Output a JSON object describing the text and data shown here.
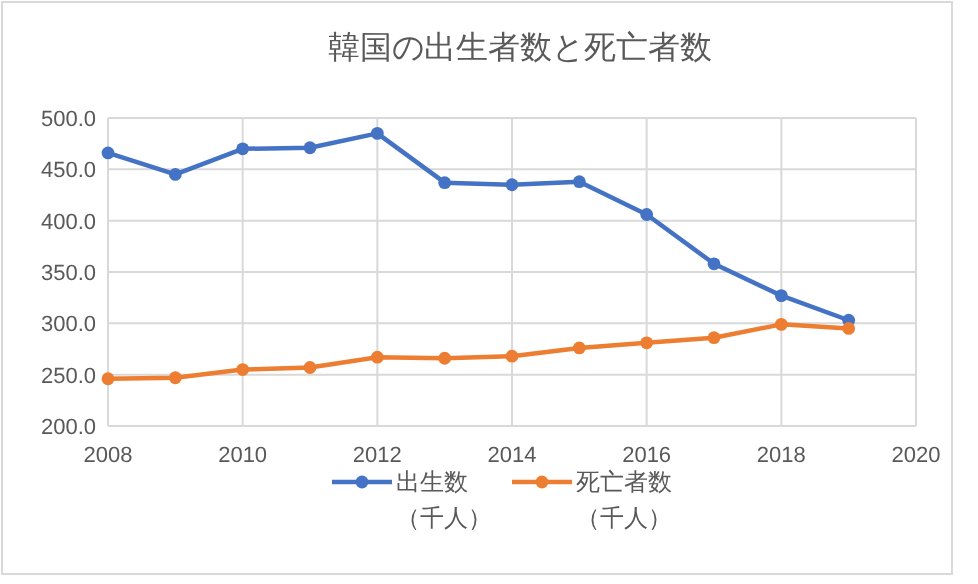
{
  "chart_data": {
    "type": "line",
    "title": "韓国の出生者数と死亡者数",
    "x": [
      2008,
      2009,
      2010,
      2011,
      2012,
      2013,
      2014,
      2015,
      2016,
      2017,
      2018,
      2019
    ],
    "series": [
      {
        "name": "出生数（千人）",
        "color": "#4472c4",
        "values": [
          466,
          445,
          470,
          471,
          485,
          437,
          435,
          438,
          406,
          358,
          327,
          303
        ]
      },
      {
        "name": "死亡者数（千人）",
        "color": "#ed7d31",
        "values": [
          246,
          247,
          255,
          257,
          267,
          266,
          268,
          276,
          281,
          286,
          299,
          295
        ]
      }
    ],
    "xlim": [
      2008,
      2020
    ],
    "xticks": [
      2008,
      2010,
      2012,
      2014,
      2016,
      2018,
      2020
    ],
    "ylim": [
      200,
      500
    ],
    "yticks": [
      {
        "value": 200,
        "label": "200.0"
      },
      {
        "value": 250,
        "label": "250.0"
      },
      {
        "value": 300,
        "label": "300.0"
      },
      {
        "value": 350,
        "label": "350.0"
      },
      {
        "value": 400,
        "label": "400.0"
      },
      {
        "value": 450,
        "label": "450.0"
      },
      {
        "value": 500,
        "label": "500.0"
      }
    ],
    "grid": true,
    "legend": "bottom",
    "marker": "circle",
    "line_style": "solid"
  }
}
